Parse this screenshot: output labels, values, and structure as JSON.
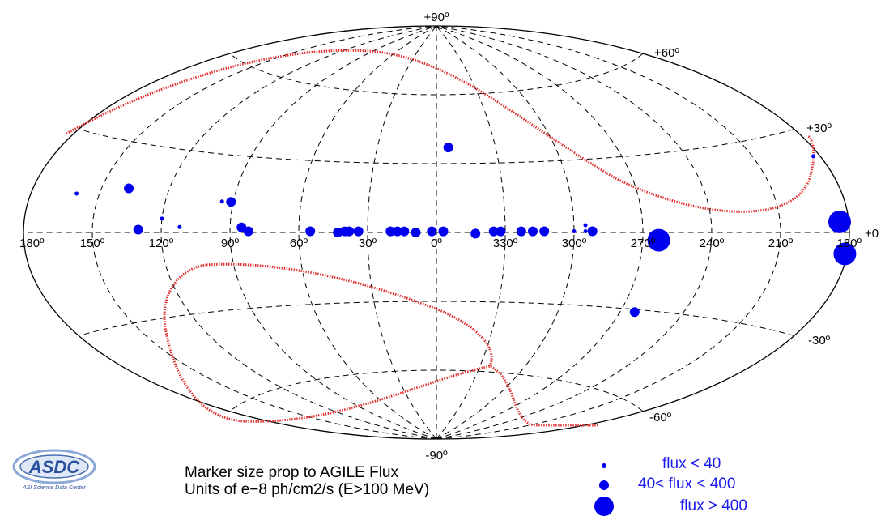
{
  "chart_data": {
    "type": "scatter",
    "projection": "aitoff",
    "coordinate_system": "galactic",
    "longitude_ticks": [
      "180º",
      "150º",
      "120º",
      "90º",
      "60º",
      "30º",
      "0º",
      "330º",
      "300º",
      "270º",
      "240º",
      "210º",
      "180º"
    ],
    "latitude_ticks": [
      "+90º",
      "+60º",
      "+30º",
      "+0",
      "-30º",
      "-60º",
      "-90º"
    ],
    "grid": true,
    "sources": [
      {
        "l": 160,
        "b": 12,
        "size": "small"
      },
      {
        "l": 138,
        "b": 15,
        "size": "medium"
      },
      {
        "l": 120,
        "b": 5,
        "size": "small"
      },
      {
        "l": 112,
        "b": 2,
        "size": "small"
      },
      {
        "l": 95,
        "b": 12,
        "size": "small"
      },
      {
        "l": 91,
        "b": 12,
        "size": "medium"
      },
      {
        "l": 130,
        "b": 1,
        "size": "medium"
      },
      {
        "l": 85,
        "b": 2,
        "size": "medium"
      },
      {
        "l": 82,
        "b": 0.5,
        "size": "medium"
      },
      {
        "l": 55,
        "b": 0.5,
        "size": "medium"
      },
      {
        "l": 43,
        "b": 0,
        "size": "medium"
      },
      {
        "l": 40,
        "b": 0.5,
        "size": "medium"
      },
      {
        "l": 38,
        "b": 0.5,
        "size": "medium"
      },
      {
        "l": 34,
        "b": 0.5,
        "size": "medium"
      },
      {
        "l": 20,
        "b": 0.5,
        "size": "medium"
      },
      {
        "l": 17,
        "b": 0.5,
        "size": "medium"
      },
      {
        "l": 14,
        "b": 0.5,
        "size": "medium"
      },
      {
        "l": 9,
        "b": 0,
        "size": "medium"
      },
      {
        "l": 2,
        "b": 0.5,
        "size": "medium"
      },
      {
        "l": 357,
        "b": 0.5,
        "size": "medium"
      },
      {
        "l": 354,
        "b": 37,
        "size": "medium"
      },
      {
        "l": 343,
        "b": -0.5,
        "size": "medium"
      },
      {
        "l": 335,
        "b": 0.5,
        "size": "medium"
      },
      {
        "l": 332,
        "b": 0.5,
        "size": "medium"
      },
      {
        "l": 323,
        "b": 0.5,
        "size": "medium"
      },
      {
        "l": 318,
        "b": 0.5,
        "size": "medium"
      },
      {
        "l": 313,
        "b": 0.5,
        "size": "medium"
      },
      {
        "l": 300,
        "b": 0.5,
        "size": "small"
      },
      {
        "l": 295,
        "b": 3,
        "size": "small"
      },
      {
        "l": 295,
        "b": 0.5,
        "size": "small"
      },
      {
        "l": 292,
        "b": 0.5,
        "size": "medium"
      },
      {
        "l": 263,
        "b": -3,
        "size": "large"
      },
      {
        "l": 263,
        "b": -31,
        "size": "medium"
      },
      {
        "l": 184,
        "b": 3,
        "size": "large"
      },
      {
        "l": 181,
        "b": -6,
        "size": "large"
      },
      {
        "l": 183,
        "b": 22,
        "size": "small"
      },
      {
        "l": 183,
        "b": 2.5,
        "size": "small"
      }
    ],
    "exposure_boundary_note": "red dotted curves (AGILE pointing/exposure boundaries)"
  },
  "caption": {
    "line1": "Marker size prop to AGILE Flux",
    "line2": "Units of e−8 ph/cm2/s (E>100 MeV)"
  },
  "legend": [
    {
      "size": "small",
      "label": "flux < 40"
    },
    {
      "size": "medium",
      "label": "40< flux < 400"
    },
    {
      "size": "large",
      "label": "flux > 400"
    }
  ],
  "logo": {
    "text": "ASDC",
    "subtext": "ASI Science Data Center"
  },
  "colors": {
    "marker": "#0000ee",
    "boundary": "#e03030",
    "grid": "#000000"
  }
}
